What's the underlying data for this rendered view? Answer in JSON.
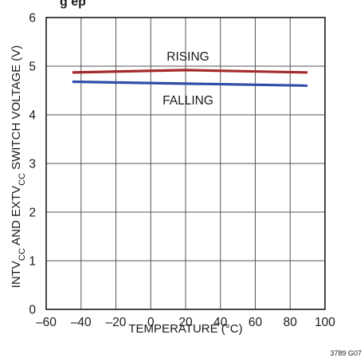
{
  "chart_data": {
    "type": "line",
    "title_fragment": "g      ep",
    "xlabel": "TEMPERATURE (°C)",
    "ylabel": {
      "parts": [
        {
          "text": "INTV",
          "sub": false
        },
        {
          "text": "CC",
          "sub": true
        },
        {
          "text": " AND EXTV",
          "sub": false
        },
        {
          "text": "CC",
          "sub": true
        },
        {
          "text": " SWITCH VOLTAGE (V)",
          "sub": false
        }
      ]
    },
    "xlim": [
      -60,
      100
    ],
    "ylim": [
      0,
      6
    ],
    "x_ticks": [
      -60,
      -40,
      -20,
      0,
      20,
      40,
      60,
      80,
      100
    ],
    "y_ticks": [
      0,
      1,
      2,
      3,
      4,
      5,
      6
    ],
    "x_tick_labels": [
      "–60",
      "–40",
      "–20",
      "0",
      "20",
      "40",
      "60",
      "80",
      "100"
    ],
    "y_tick_labels": [
      "0",
      "1",
      "2",
      "3",
      "4",
      "5",
      "6"
    ],
    "grid": true,
    "series": [
      {
        "name": "RISING",
        "color": "#a52a2a",
        "x": [
          -45,
          20,
          90
        ],
        "y": [
          4.87,
          4.92,
          4.87
        ]
      },
      {
        "name": "FALLING",
        "color": "#2f4ea8",
        "x": [
          -45,
          90
        ],
        "y": [
          4.68,
          4.6
        ]
      }
    ],
    "annotations": [
      {
        "text": "RISING",
        "series": "RISING"
      },
      {
        "text": "FALLING",
        "series": "FALLING"
      }
    ],
    "figure_id": "3789 G07"
  }
}
